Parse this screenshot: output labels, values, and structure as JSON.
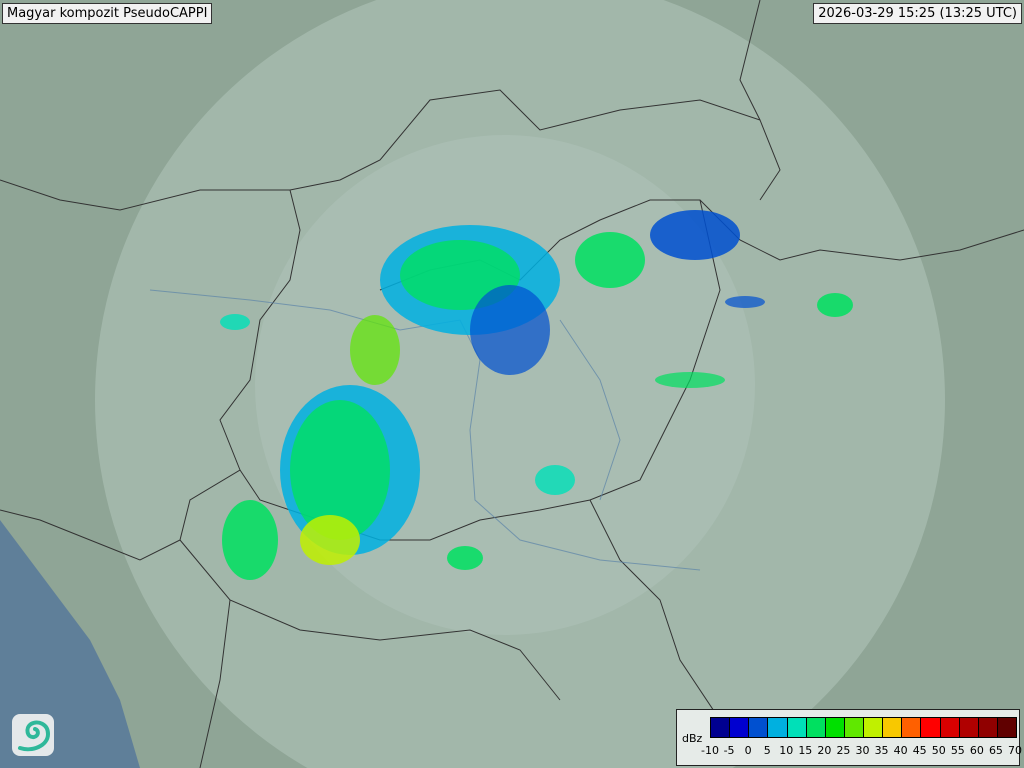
{
  "header": {
    "title": "Magyar kompozit  PseudoCAPPI",
    "timestamp": "2026-03-29 15:25 (13:25 UTC)"
  },
  "logo": {
    "icon": "swirl-logo-icon"
  },
  "legend": {
    "unit": "dBz",
    "ticks": [
      "-10",
      "-5",
      "0",
      "5",
      "10",
      "15",
      "20",
      "25",
      "30",
      "35",
      "40",
      "45",
      "50",
      "55",
      "60",
      "65",
      "70"
    ],
    "colors": [
      "#000090",
      "#0000d0",
      "#0050d0",
      "#00b0e0",
      "#00e0b8",
      "#00e060",
      "#00e000",
      "#60e800",
      "#c0f000",
      "#f8c800",
      "#ff6000",
      "#ff0000",
      "#d80000",
      "#b00000",
      "#900000",
      "#600000"
    ]
  },
  "map_colors": {
    "land": "#8fa596",
    "coverage": "#bccfc6",
    "sea": "#5f7f99",
    "border": "#333333"
  }
}
